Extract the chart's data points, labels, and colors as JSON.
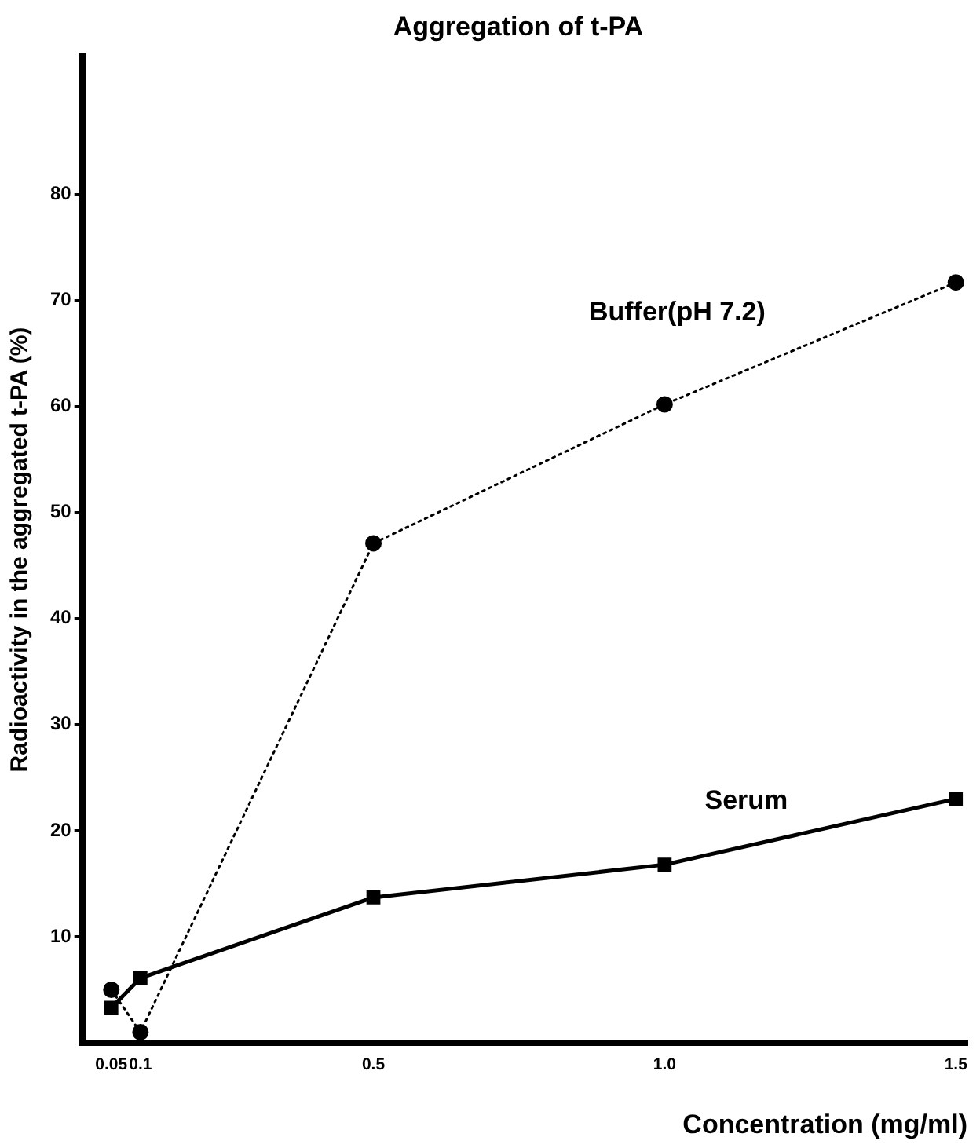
{
  "chart_data": {
    "type": "line",
    "title": "Aggregation of t-PA",
    "xlabel": "Concentration (mg/ml)",
    "ylabel": "Radioactivity in the aggregated t-PA (%)",
    "x": [
      0.05,
      0.1,
      0.5,
      1,
      1.5
    ],
    "series": [
      {
        "name": "Buffer(pH 7.2)",
        "color": "#000000",
        "values": [
          5,
          1,
          47.1,
          60.2,
          71.7
        ],
        "marker": "circle",
        "line_style": "dotted"
      },
      {
        "name": "Serum",
        "color": "#000000",
        "values": [
          3.3,
          6.1,
          13.7,
          16.8,
          23
        ],
        "marker": "square",
        "line_style": "solid"
      }
    ],
    "xlim": [
      0,
      1.52
    ],
    "xticks": [
      0.05,
      0.1,
      0.5,
      {
        "value": 1,
        "label": "1.0"
      },
      {
        "value": 1.5,
        "label": "1.5"
      }
    ],
    "ylim": [
      0,
      93
    ],
    "yticks": [
      10,
      20,
      30,
      40,
      50,
      60,
      70,
      80
    ],
    "grid": false,
    "legend": false
  }
}
